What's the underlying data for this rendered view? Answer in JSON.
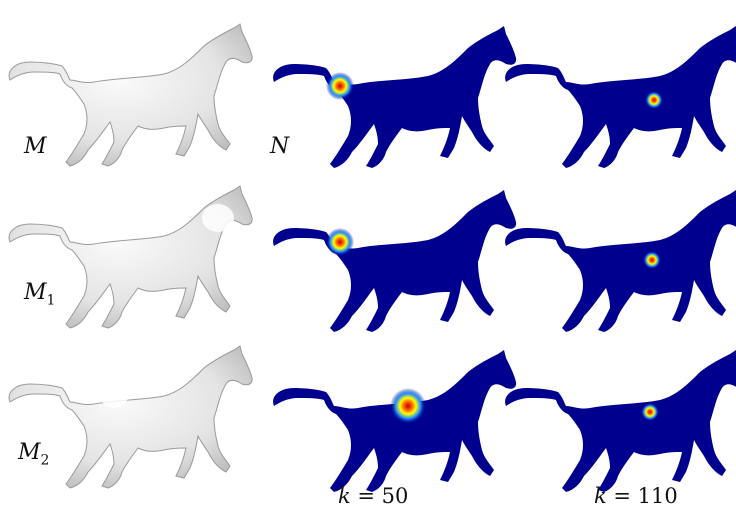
{
  "row_labels": [
    {
      "base": "M",
      "sub": ""
    },
    {
      "base": "M",
      "sub": "1"
    },
    {
      "base": "M",
      "sub": "2"
    }
  ],
  "target_label": "N",
  "column_labels": [
    {
      "var": "k",
      "eq": " = 50"
    },
    {
      "var": "k",
      "eq": " = 110"
    }
  ],
  "colors": {
    "mesh_light": "#f2f2f2",
    "mesh_shadow": "#a9a9a9",
    "heat_base": "#00008f",
    "heat_mid": "#1e90ff",
    "heat_hot": "#ffff00",
    "heat_peak": "#c40000"
  }
}
